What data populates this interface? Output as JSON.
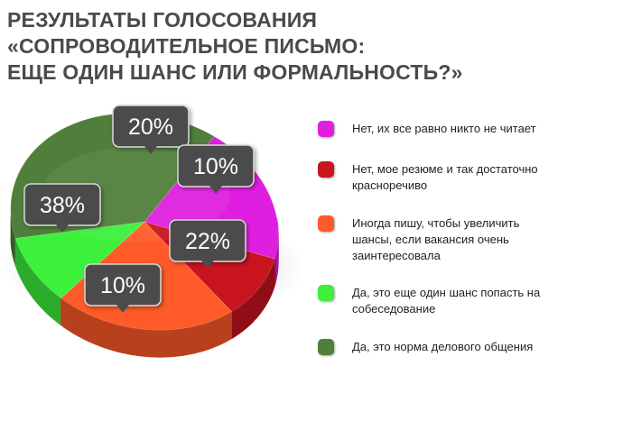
{
  "title": {
    "line1": "РЕЗУЛЬТАТЫ ГОЛОСОВАНИЯ",
    "line2": "«СОПРОВОДИТЕЛЬНОЕ ПИСЬМО:",
    "line3": "ЕЩЕ ОДИН ШАНС ИЛИ ФОРМАЛЬНОСТЬ?»"
  },
  "chart_data": {
    "type": "pie",
    "categories": [
      "Нет, их все равно никто не читает",
      "Нет, мое резюме и так достаточно красноречиво",
      "Иногда пишу, чтобы увеличить шансы, если вакансия очень заинтересовала",
      "Да, это еще один шанс попасть на собеседование",
      "Да, это норма делового общения"
    ],
    "values": [
      20,
      10,
      22,
      10,
      38
    ],
    "labels": [
      "20%",
      "10%",
      "22%",
      "10%",
      "38%"
    ],
    "colors": [
      "#e01ee0",
      "#c8141e",
      "#ff5a28",
      "#3cf03c",
      "#4f7f3a"
    ],
    "title": "РЕЗУЛЬТАТЫ ГОЛОСОВАНИЯ «СОПРОВОДИТЕЛЬНОЕ ПИСЬМО: ЕЩЕ ОДИН ШАНС ИЛИ ФОРМАЛЬНОСТЬ?»",
    "legend_position": "right"
  },
  "legend": {
    "items": [
      {
        "label_lines": [
          "Нет, их все равно никто не читает"
        ],
        "color": "#e01ee0"
      },
      {
        "label_lines": [
          "Нет, мое резюме и так достаточно",
          "красноречиво"
        ],
        "color": "#c8141e"
      },
      {
        "label_lines": [
          "Иногда пишу, чтобы увеличить",
          "шансы, если вакансия очень",
          "заинтересовала"
        ],
        "color": "#ff5a28"
      },
      {
        "label_lines": [
          "Да, это еще один шанс попасть на",
          "собеседование"
        ],
        "color": "#3cf03c"
      },
      {
        "label_lines": [
          "Да, это норма делового общения"
        ],
        "color": "#4f7f3a"
      }
    ]
  }
}
